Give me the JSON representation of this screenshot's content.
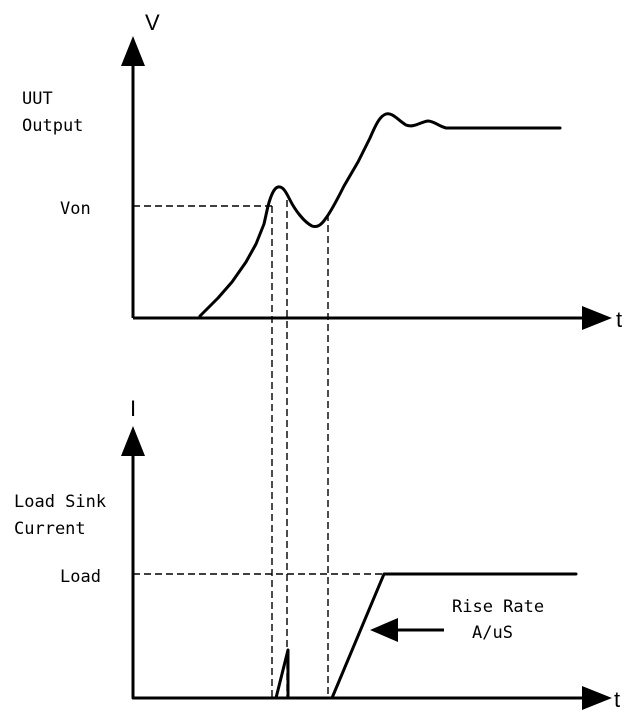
{
  "top_graph": {
    "y_axis_symbol": "V",
    "x_axis_symbol": "t",
    "y_label_line1": "UUT",
    "y_label_line2": "Output",
    "level_label": "Von"
  },
  "bottom_graph": {
    "y_axis_symbol": "I",
    "x_axis_symbol": "t",
    "y_label_line1": "Load Sink",
    "y_label_line2": "Current",
    "level_label": "Load",
    "annotation_line1": "Rise Rate",
    "annotation_line2": "A/uS"
  }
}
